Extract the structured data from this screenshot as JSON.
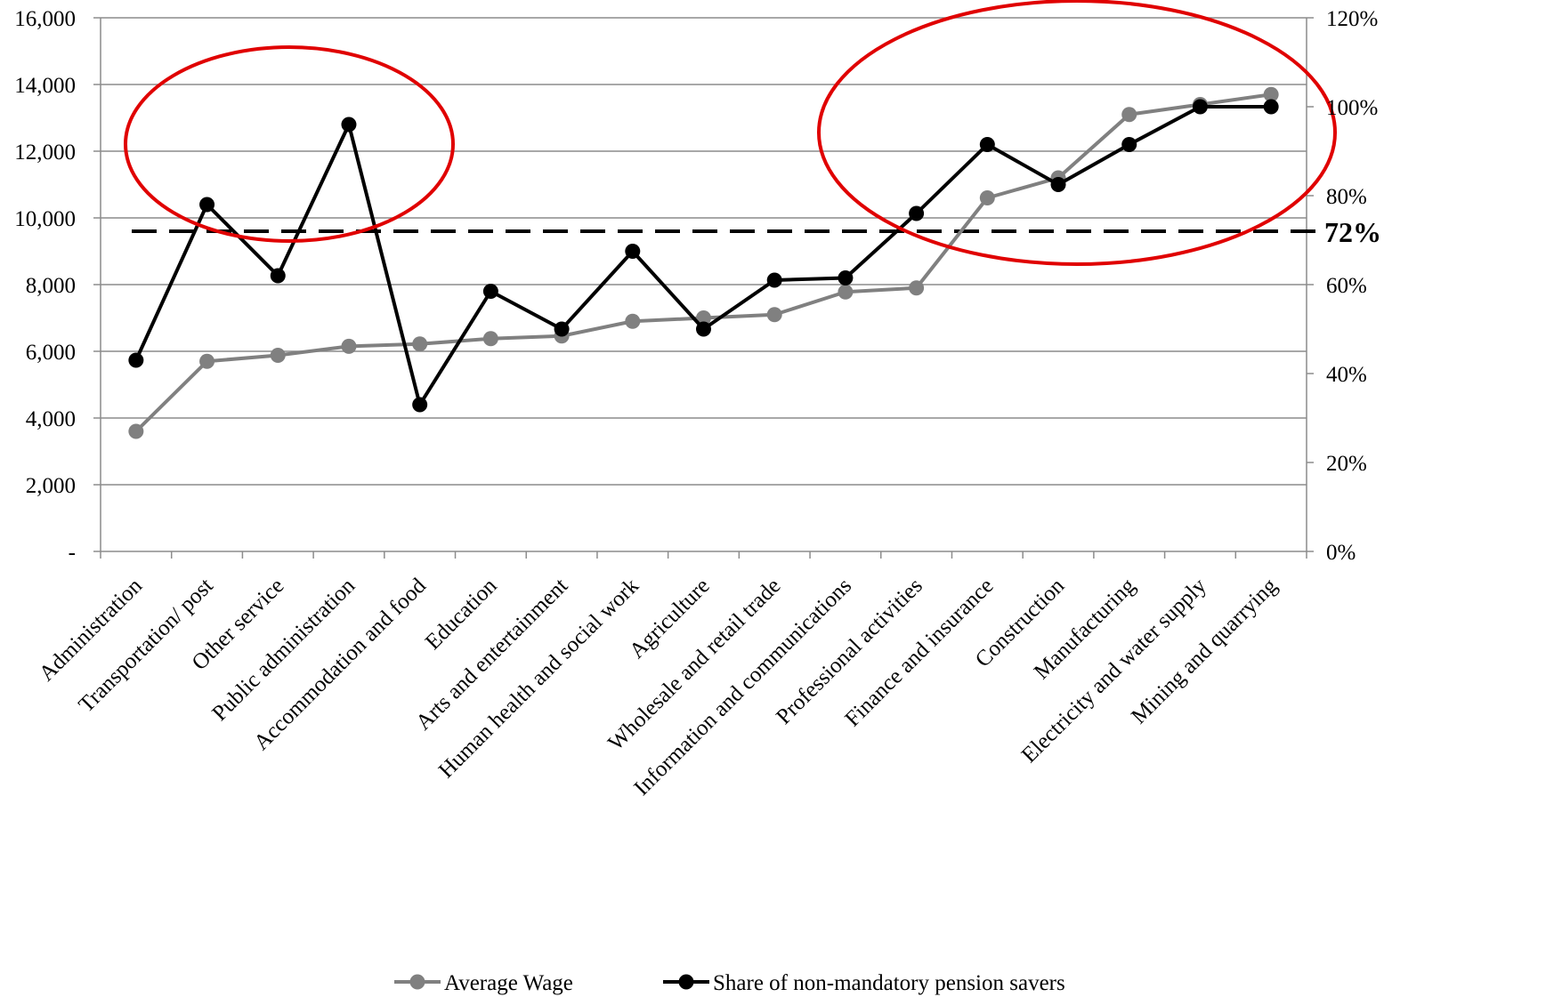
{
  "chart_data": {
    "type": "line",
    "categories": [
      "Administration",
      "Transportation/ post",
      "Other service",
      "Public administration",
      "Accommodation and food",
      "Education",
      "Arts and entertainment",
      "Human health and social work",
      "Agriculture",
      "Wholesale and retail trade",
      "Information and communications",
      "Professional activities",
      "Finance and insurance",
      "Construction",
      "Manufacturing",
      "Electricity and water supply",
      "Mining and quarrying"
    ],
    "series": [
      {
        "name": "Average Wage",
        "axis": "left",
        "color": "#808080",
        "values": [
          3600,
          5700,
          5880,
          6150,
          6220,
          6380,
          6460,
          6900,
          7000,
          7100,
          7780,
          7900,
          10600,
          11200,
          13100,
          13400,
          13700
        ]
      },
      {
        "name": "Share of non-mandatory pension savers",
        "axis": "right",
        "color": "#000000",
        "values": [
          0.43,
          0.78,
          0.62,
          0.96,
          0.33,
          0.585,
          0.5,
          0.675,
          0.5,
          0.61,
          0.615,
          0.76,
          0.915,
          0.825,
          0.915,
          1.0,
          1.0
        ]
      }
    ],
    "y_left": {
      "ylim": [
        0,
        16000
      ],
      "ticks": [
        0,
        2000,
        4000,
        6000,
        8000,
        10000,
        12000,
        14000,
        16000
      ],
      "tick_labels": [
        "-",
        "2,000",
        "4,000",
        "6,000",
        "8,000",
        "10,000",
        "12,000",
        "14,000",
        "16,000"
      ]
    },
    "y_right": {
      "ylim": [
        0,
        1.2
      ],
      "ticks": [
        0,
        0.2,
        0.4,
        0.6,
        0.8,
        1.0,
        1.2
      ],
      "tick_labels": [
        "0%",
        "20%",
        "40%",
        "60%",
        "80%",
        "100%",
        "120%"
      ]
    },
    "reference_line": {
      "value": 0.72,
      "axis": "right",
      "style": "dashed",
      "label": "72%"
    },
    "annotations": [
      {
        "type": "ellipse",
        "color": "#e00000",
        "from_category": "Transportation/ post",
        "to_category": "Public administration"
      },
      {
        "type": "ellipse",
        "color": "#e00000",
        "from_category": "Professional activities",
        "to_category": "Mining and quarrying"
      }
    ],
    "grid": true,
    "legend_position": "bottom",
    "title": "",
    "xlabel": "",
    "ylabel": ""
  }
}
